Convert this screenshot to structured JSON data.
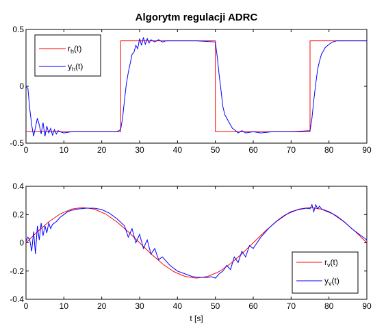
{
  "chart_data": [
    {
      "type": "line",
      "title": "Algorytm regulacji ADRC",
      "xlabel": "",
      "ylabel": "",
      "xlim": [
        0,
        90
      ],
      "ylim": [
        -0.5,
        0.5
      ],
      "xticks": [
        "0",
        "10",
        "20",
        "30",
        "40",
        "50",
        "60",
        "70",
        "80",
        "90"
      ],
      "yticks": [
        "-0.5",
        "0",
        "0.5"
      ],
      "legend_position": "top-left",
      "series": [
        {
          "name": "r",
          "sub": "h",
          "label": "r_h(t)",
          "color": "#ff0000",
          "x": [
            0,
            25,
            25,
            50,
            50,
            75,
            75,
            90
          ],
          "y": [
            -0.4,
            -0.4,
            0.4,
            0.4,
            -0.4,
            -0.4,
            0.4,
            0.4
          ]
        },
        {
          "name": "y",
          "sub": "h",
          "label": "y_h(t)",
          "color": "#0000ff",
          "x": [
            0,
            0.5,
            1,
            1.5,
            2,
            2.5,
            3,
            3.5,
            4,
            4.5,
            5,
            5.5,
            6,
            6.5,
            7,
            7.5,
            8,
            8.5,
            9,
            10,
            12,
            14,
            16,
            18,
            20,
            22,
            24,
            25,
            25.5,
            26,
            26.5,
            27,
            27.5,
            28,
            28.5,
            29,
            29.5,
            30,
            30.5,
            31,
            31.5,
            32,
            32.5,
            33,
            34,
            35,
            36,
            37,
            38,
            40,
            45,
            50,
            50.5,
            51,
            51.5,
            52,
            52.5,
            53,
            53.5,
            54,
            54.5,
            55,
            56,
            57,
            58,
            60,
            62,
            65,
            70,
            75,
            75.5,
            76,
            76.5,
            77,
            77.5,
            78,
            78.5,
            79,
            80,
            81,
            82,
            84,
            86,
            88,
            90
          ],
          "y": [
            0,
            -0.02,
            -0.2,
            -0.34,
            -0.44,
            -0.36,
            -0.28,
            -0.34,
            -0.42,
            -0.32,
            -0.44,
            -0.35,
            -0.41,
            -0.37,
            -0.43,
            -0.38,
            -0.42,
            -0.39,
            -0.4,
            -0.41,
            -0.4,
            -0.4,
            -0.4,
            -0.4,
            -0.4,
            -0.4,
            -0.4,
            -0.38,
            -0.28,
            -0.12,
            0.02,
            0.12,
            0.2,
            0.28,
            0.3,
            0.36,
            0.33,
            0.42,
            0.36,
            0.43,
            0.37,
            0.42,
            0.38,
            0.41,
            0.39,
            0.41,
            0.39,
            0.4,
            0.4,
            0.4,
            0.4,
            0.39,
            0.26,
            0.1,
            -0.04,
            -0.18,
            -0.25,
            -0.28,
            -0.31,
            -0.34,
            -0.37,
            -0.38,
            -0.41,
            -0.39,
            -0.41,
            -0.4,
            -0.41,
            -0.4,
            -0.4,
            -0.39,
            -0.28,
            -0.12,
            0.02,
            0.15,
            0.22,
            0.28,
            0.31,
            0.34,
            0.37,
            0.39,
            0.4,
            0.4,
            0.4,
            0.4,
            0.4
          ]
        }
      ]
    },
    {
      "type": "line",
      "title": "",
      "xlabel": "t [s]",
      "ylabel": "",
      "xlim": [
        0,
        90
      ],
      "ylim": [
        -0.4,
        0.4
      ],
      "xticks": [
        "0",
        "10",
        "20",
        "30",
        "40",
        "50",
        "60",
        "70",
        "80",
        "90"
      ],
      "yticks": [
        "-0.4",
        "-0.2",
        "0",
        "0.2",
        "0.4"
      ],
      "legend_position": "bottom-right",
      "series": [
        {
          "name": "r",
          "sub": "v",
          "label": "r_v(t)",
          "color": "#ff0000",
          "x": [
            0,
            3,
            6,
            9,
            12,
            15,
            18,
            21,
            24,
            27,
            30,
            33,
            36,
            39,
            42,
            45,
            48,
            51,
            54,
            57,
            60,
            63,
            66,
            69,
            72,
            75,
            78,
            81,
            84,
            87,
            90
          ],
          "y": [
            0,
            0.078,
            0.148,
            0.204,
            0.238,
            0.25,
            0.238,
            0.204,
            0.148,
            0.078,
            0,
            -0.078,
            -0.148,
            -0.204,
            -0.238,
            -0.25,
            -0.238,
            -0.204,
            -0.148,
            -0.078,
            0,
            0.078,
            0.148,
            0.204,
            0.238,
            0.25,
            0.238,
            0.204,
            0.148,
            0.078,
            0
          ]
        },
        {
          "name": "y",
          "sub": "v",
          "label": "y_v(t)",
          "color": "#0000ff",
          "x": [
            0,
            0.5,
            1,
            1.5,
            2,
            2.5,
            3,
            3.5,
            4,
            4.5,
            5,
            5.5,
            6,
            6.5,
            7,
            8,
            9,
            10,
            11,
            12,
            14,
            16,
            18,
            20,
            22,
            24,
            26,
            27,
            28,
            29,
            30,
            31,
            32,
            33,
            34,
            35,
            36,
            38,
            40,
            42,
            44,
            46,
            48,
            49,
            50,
            51,
            52,
            53,
            54,
            55,
            56,
            57,
            58,
            59,
            60,
            62,
            64,
            66,
            68,
            70,
            72,
            74,
            75,
            75.5,
            76,
            76.5,
            77,
            77.5,
            78,
            79,
            80,
            82,
            84,
            86,
            88,
            90
          ],
          "y": [
            0.01,
            0.04,
            0.02,
            -0.06,
            0.08,
            -0.08,
            0.12,
            0.02,
            0.14,
            0.05,
            0.12,
            0.07,
            0.14,
            0.1,
            0.13,
            0.15,
            0.18,
            0.2,
            0.22,
            0.23,
            0.24,
            0.245,
            0.245,
            0.235,
            0.21,
            0.17,
            0.12,
            0.04,
            0.1,
            0.0,
            0.06,
            -0.04,
            0.02,
            -0.08,
            -0.04,
            -0.12,
            -0.1,
            -0.16,
            -0.2,
            -0.22,
            -0.24,
            -0.245,
            -0.245,
            -0.24,
            -0.25,
            -0.22,
            -0.2,
            -0.16,
            -0.19,
            -0.1,
            -0.14,
            -0.06,
            -0.1,
            -0.02,
            -0.04,
            0.04,
            0.1,
            0.15,
            0.19,
            0.22,
            0.235,
            0.245,
            0.24,
            0.27,
            0.22,
            0.27,
            0.24,
            0.26,
            0.24,
            0.23,
            0.22,
            0.19,
            0.15,
            0.1,
            0.06,
            0.02
          ]
        }
      ]
    }
  ]
}
